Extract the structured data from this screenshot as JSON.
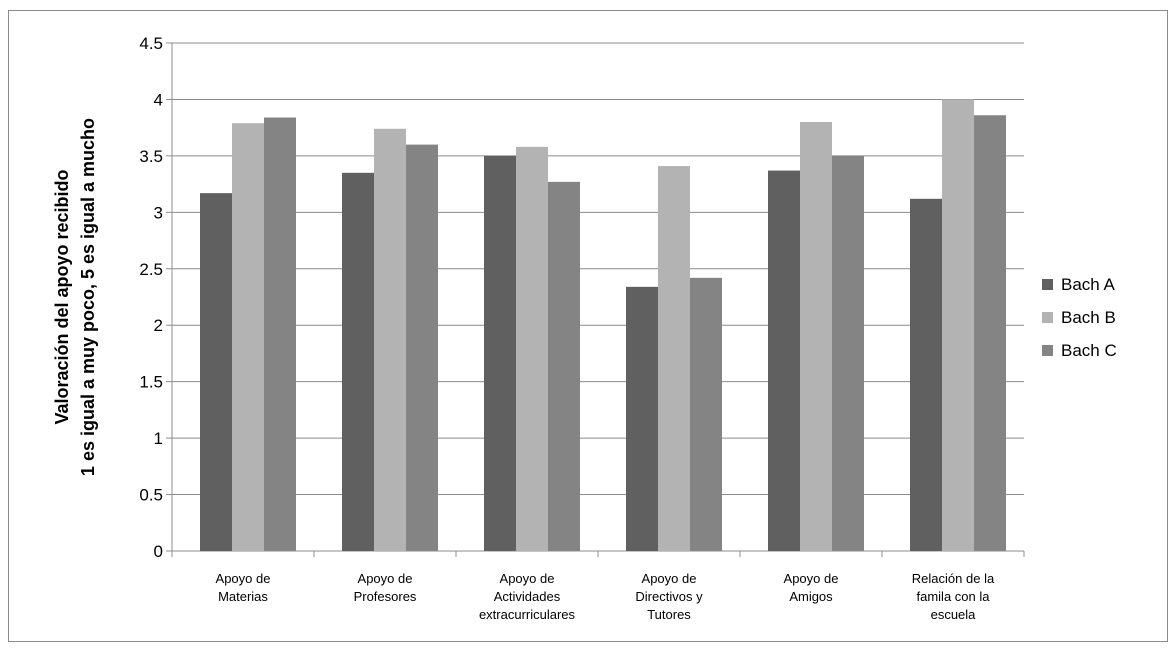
{
  "chart_data": {
    "type": "bar",
    "title": "",
    "ylabel_lines": [
      "Valoración del apoyo recibido",
      "1 es igual a muy poco, 5 es igual a mucho"
    ],
    "xlabel": "",
    "categories": [
      [
        "Apoyo de",
        "Materias"
      ],
      [
        "Apoyo de",
        "Profesores"
      ],
      [
        "Apoyo de",
        "Actividades",
        "extracurriculares"
      ],
      [
        "Apoyo de",
        "Directivos y",
        "Tutores"
      ],
      [
        "Apoyo de",
        "Amigos"
      ],
      [
        "Relación de la",
        "famila con la",
        "escuela"
      ]
    ],
    "series": [
      {
        "name": "Bach A",
        "color": "#606060",
        "values": [
          3.17,
          3.35,
          3.5,
          2.34,
          3.37,
          3.12
        ]
      },
      {
        "name": "Bach B",
        "color": "#b3b3b3",
        "values": [
          3.79,
          3.74,
          3.58,
          3.41,
          3.8,
          4.0
        ]
      },
      {
        "name": "Bach C",
        "color": "#848484",
        "values": [
          3.84,
          3.6,
          3.27,
          2.42,
          3.5,
          3.86
        ]
      }
    ],
    "ylim": [
      0,
      4.5
    ],
    "yticks": [
      "0",
      "0.5",
      "1",
      "1.5",
      "2",
      "2.5",
      "3",
      "3.5",
      "4",
      "4.5"
    ],
    "grid": true,
    "legend_position": "right"
  }
}
